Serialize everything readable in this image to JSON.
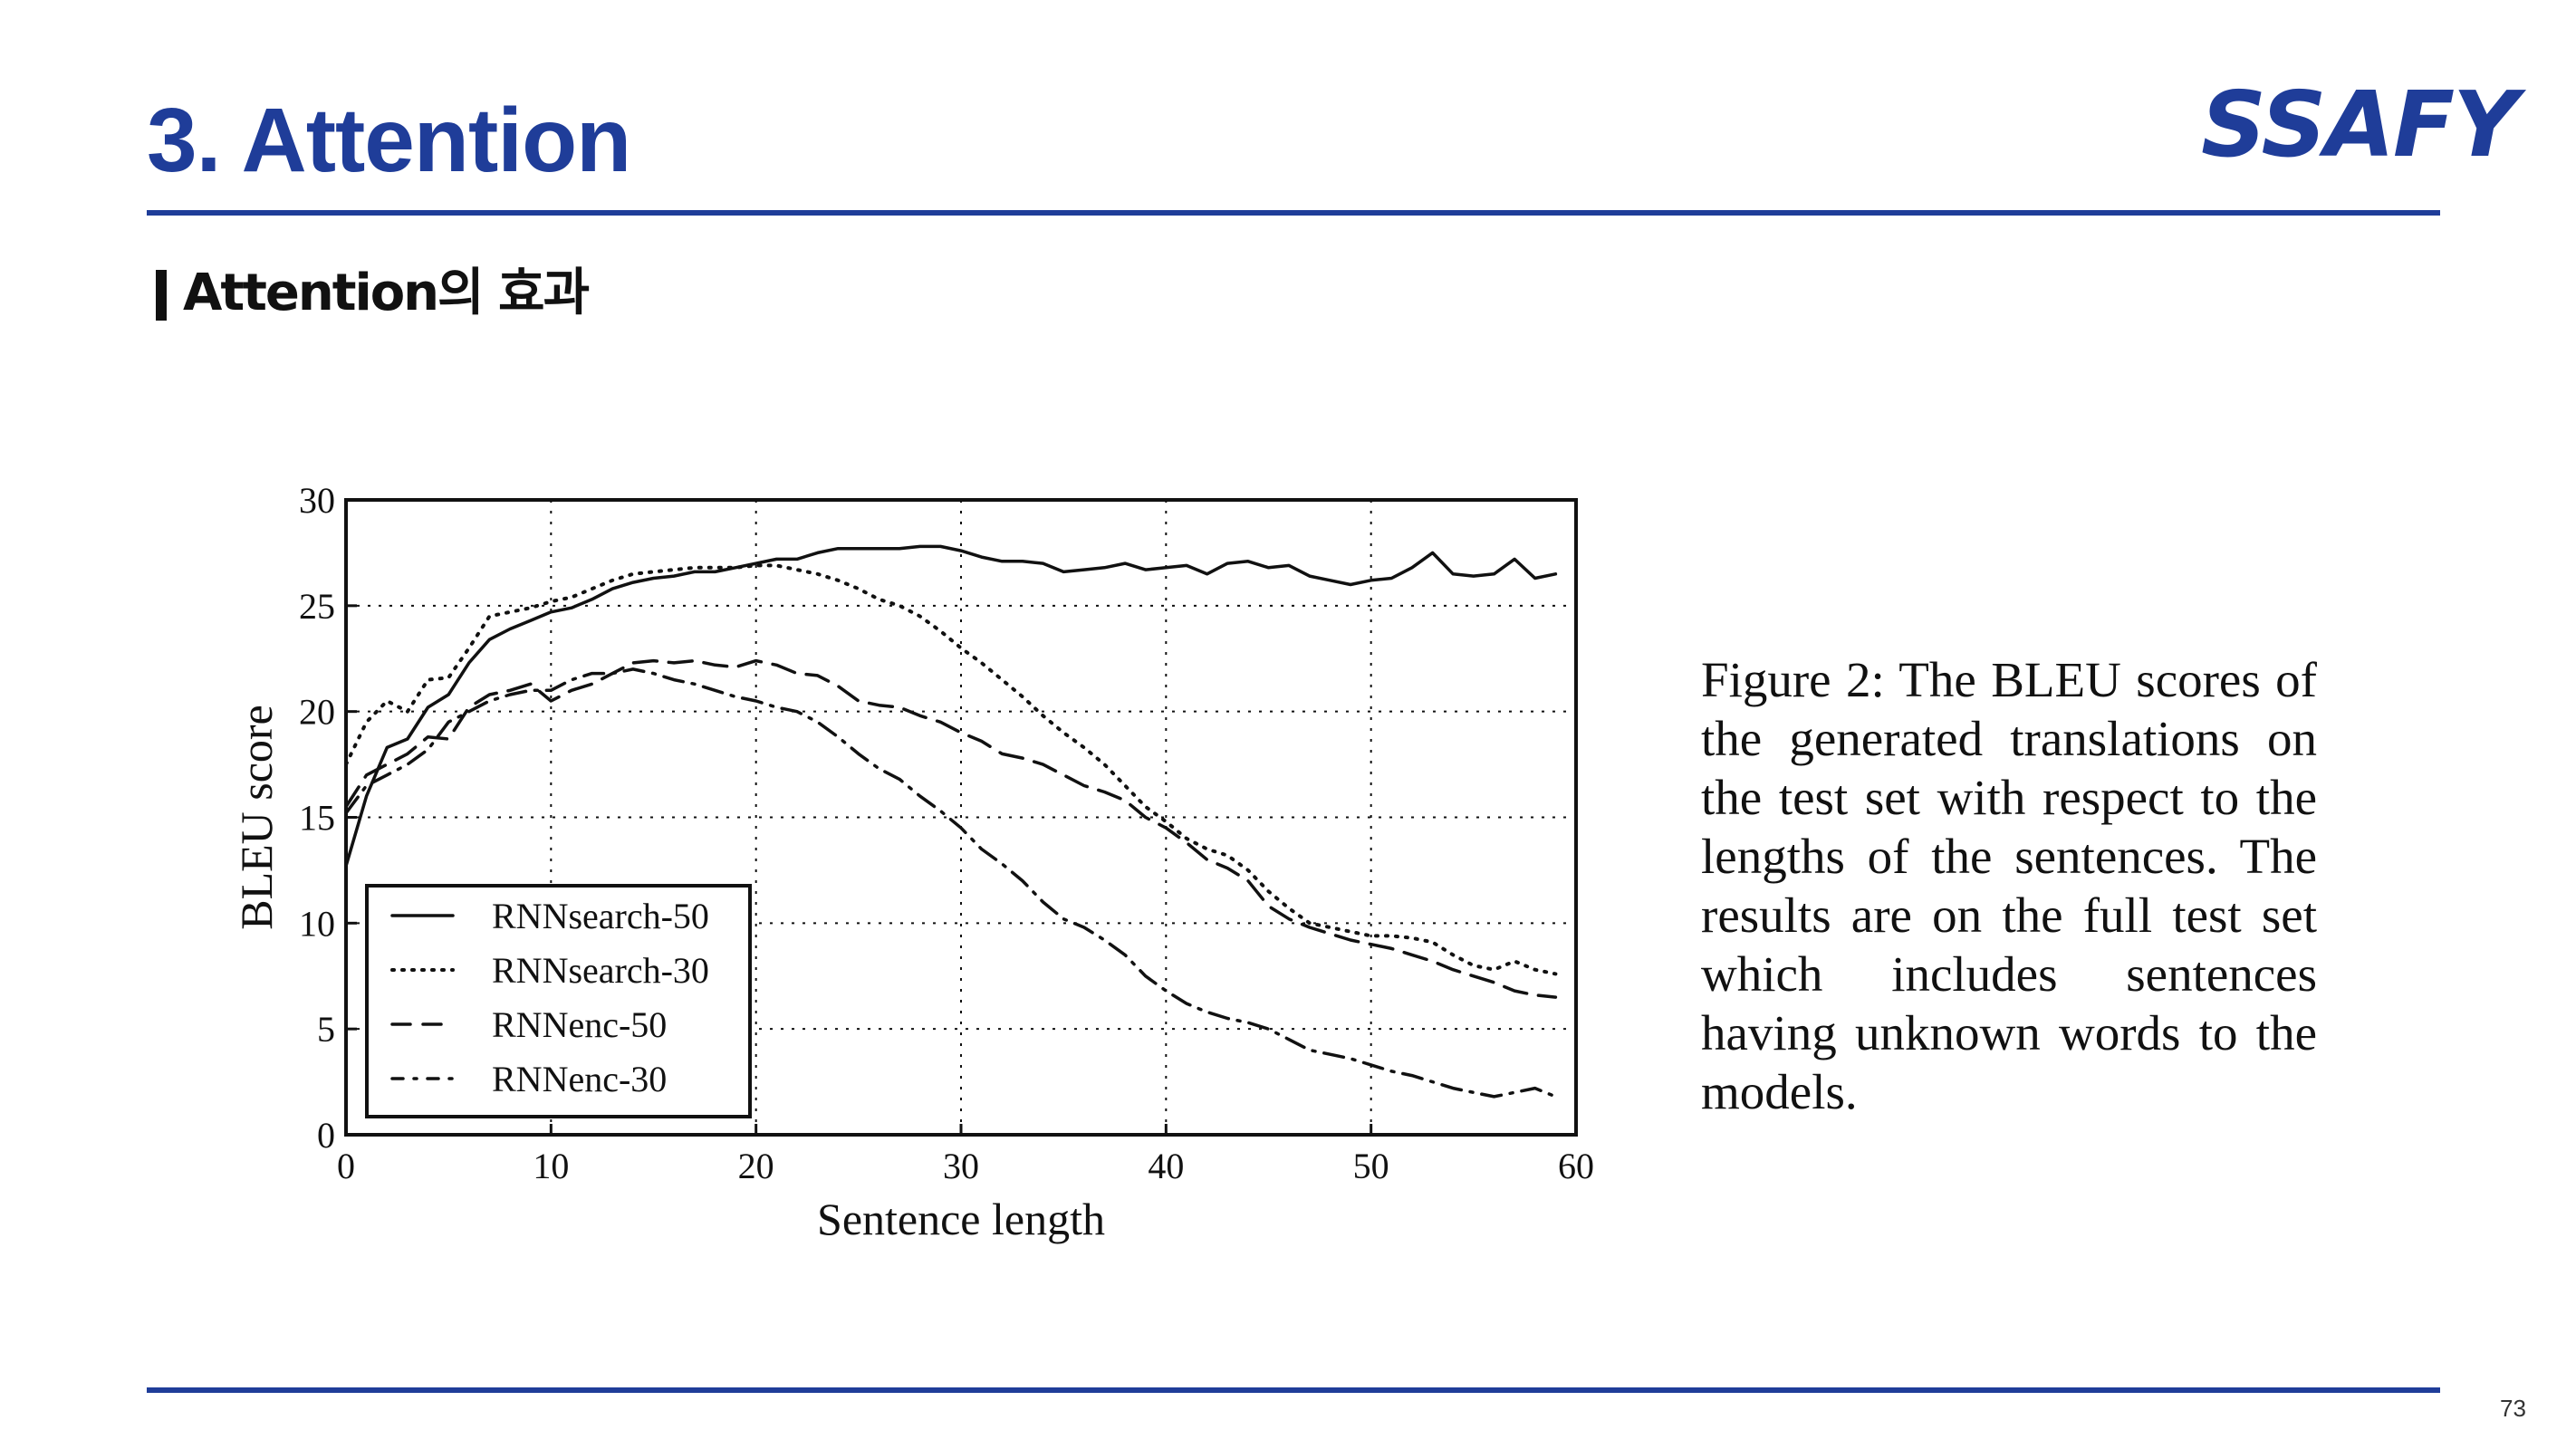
{
  "slide": {
    "title": "3. Attention",
    "logo_text": "SSAFY",
    "subtitle": "Attention의 효과",
    "page_number": "73"
  },
  "caption": "Figure 2: The BLEU scores of the generated translations on the test set with respect to the lengths of the sen­tences. The results are on the full test set which in­cludes sentences having un­known words to the models.",
  "colors": {
    "accent": "#1f3d99",
    "ink": "#111111"
  },
  "chart_data": {
    "type": "line",
    "xlabel": "Sentence length",
    "ylabel": "BLEU score",
    "xlim": [
      0,
      60
    ],
    "ylim": [
      0,
      30
    ],
    "xticks": [
      "0",
      "10",
      "20",
      "30",
      "40",
      "50",
      "60"
    ],
    "yticks": [
      "0",
      "5",
      "10",
      "15",
      "20",
      "25",
      "30"
    ],
    "grid": true,
    "legend_position": "lower-left",
    "series": [
      {
        "name": "RNNsearch-50",
        "style": "solid",
        "x": [
          0,
          1,
          2,
          3,
          4,
          5,
          6,
          7,
          8,
          9,
          10,
          11,
          12,
          13,
          14,
          15,
          16,
          17,
          18,
          19,
          20,
          21,
          22,
          23,
          24,
          25,
          26,
          27,
          28,
          29,
          30,
          31,
          32,
          33,
          34,
          35,
          36,
          37,
          38,
          39,
          40,
          41,
          42,
          43,
          44,
          45,
          46,
          47,
          48,
          49,
          50,
          51,
          52,
          53,
          54,
          55,
          56,
          57,
          58,
          59
        ],
        "y": [
          12.7,
          16.0,
          18.3,
          18.7,
          20.2,
          20.8,
          22.3,
          23.4,
          23.9,
          24.3,
          24.7,
          24.9,
          25.3,
          25.8,
          26.1,
          26.3,
          26.4,
          26.6,
          26.6,
          26.8,
          27.0,
          27.2,
          27.2,
          27.5,
          27.7,
          27.7,
          27.7,
          27.7,
          27.8,
          27.8,
          27.6,
          27.3,
          27.1,
          27.1,
          27.0,
          26.6,
          26.7,
          26.8,
          27.0,
          26.7,
          26.8,
          26.9,
          26.5,
          27.0,
          27.1,
          26.8,
          26.9,
          26.4,
          26.2,
          26.0,
          26.2,
          26.3,
          26.8,
          27.5,
          26.5,
          26.4,
          26.5,
          27.2,
          26.3,
          26.5
        ]
      },
      {
        "name": "RNNsearch-30",
        "style": "dotted",
        "x": [
          0,
          1,
          2,
          3,
          4,
          5,
          6,
          7,
          8,
          9,
          10,
          11,
          12,
          13,
          14,
          15,
          16,
          17,
          18,
          19,
          20,
          21,
          22,
          23,
          24,
          25,
          26,
          27,
          28,
          29,
          30,
          31,
          32,
          33,
          34,
          35,
          36,
          37,
          38,
          39,
          40,
          41,
          42,
          43,
          44,
          45,
          46,
          47,
          48,
          49,
          50,
          51,
          52,
          53,
          54,
          55,
          56,
          57,
          58,
          59
        ],
        "y": [
          17.5,
          19.5,
          20.5,
          20.0,
          21.5,
          21.6,
          23.0,
          24.5,
          24.7,
          24.9,
          25.2,
          25.4,
          25.8,
          26.2,
          26.5,
          26.6,
          26.7,
          26.8,
          26.8,
          26.8,
          26.9,
          26.9,
          26.7,
          26.5,
          26.2,
          25.8,
          25.3,
          25.0,
          24.5,
          23.8,
          23.0,
          22.3,
          21.5,
          20.7,
          19.8,
          19.0,
          18.3,
          17.5,
          16.5,
          15.5,
          14.8,
          14.0,
          13.5,
          13.2,
          12.5,
          11.5,
          10.7,
          10.0,
          9.8,
          9.6,
          9.4,
          9.4,
          9.3,
          9.1,
          8.5,
          8.0,
          7.8,
          8.2,
          7.8,
          7.6
        ]
      },
      {
        "name": "RNNenc-50",
        "style": "dashed",
        "x": [
          0,
          1,
          2,
          3,
          4,
          5,
          6,
          7,
          8,
          9,
          10,
          11,
          12,
          13,
          14,
          15,
          16,
          17,
          18,
          19,
          20,
          21,
          22,
          23,
          24,
          25,
          26,
          27,
          28,
          29,
          30,
          31,
          32,
          33,
          34,
          35,
          36,
          37,
          38,
          39,
          40,
          41,
          42,
          43,
          44,
          45,
          46,
          47,
          48,
          49,
          50,
          51,
          52,
          53,
          54,
          55,
          56,
          57,
          58,
          59
        ],
        "y": [
          15.5,
          17.0,
          17.5,
          18.0,
          18.8,
          18.7,
          20.2,
          20.8,
          21.0,
          21.3,
          20.5,
          21.0,
          21.3,
          21.8,
          22.3,
          22.4,
          22.3,
          22.4,
          22.2,
          22.1,
          22.4,
          22.2,
          21.8,
          21.7,
          21.2,
          20.5,
          20.3,
          20.2,
          19.8,
          19.5,
          19.0,
          18.6,
          18.0,
          17.8,
          17.5,
          17.0,
          16.5,
          16.2,
          15.8,
          15.0,
          14.5,
          13.8,
          13.0,
          12.6,
          12.0,
          10.8,
          10.2,
          9.8,
          9.5,
          9.2,
          9.0,
          8.8,
          8.5,
          8.2,
          7.8,
          7.5,
          7.2,
          6.8,
          6.6,
          6.5
        ]
      },
      {
        "name": "RNNenc-30",
        "style": "dashdot",
        "x": [
          0,
          1,
          2,
          3,
          4,
          5,
          6,
          7,
          8,
          9,
          10,
          11,
          12,
          13,
          14,
          15,
          16,
          17,
          18,
          19,
          20,
          21,
          22,
          23,
          24,
          25,
          26,
          27,
          28,
          29,
          30,
          31,
          32,
          33,
          34,
          35,
          36,
          37,
          38,
          39,
          40,
          41,
          42,
          43,
          44,
          45,
          46,
          47,
          48,
          49,
          50,
          51,
          52,
          53,
          54,
          55,
          56,
          57,
          58,
          59
        ],
        "y": [
          15.2,
          16.5,
          17.0,
          17.5,
          18.2,
          19.5,
          20.0,
          20.5,
          20.8,
          21.0,
          21.0,
          21.5,
          21.8,
          21.8,
          22.0,
          21.8,
          21.5,
          21.3,
          21.0,
          20.7,
          20.5,
          20.2,
          20.0,
          19.5,
          18.8,
          18.0,
          17.3,
          16.8,
          16.0,
          15.3,
          14.5,
          13.5,
          12.8,
          12.0,
          11.0,
          10.2,
          9.8,
          9.2,
          8.5,
          7.5,
          6.8,
          6.2,
          5.8,
          5.5,
          5.3,
          5.0,
          4.5,
          4.0,
          3.8,
          3.6,
          3.3,
          3.0,
          2.8,
          2.5,
          2.2,
          2.0,
          1.8,
          2.0,
          2.2,
          1.8
        ]
      }
    ]
  }
}
